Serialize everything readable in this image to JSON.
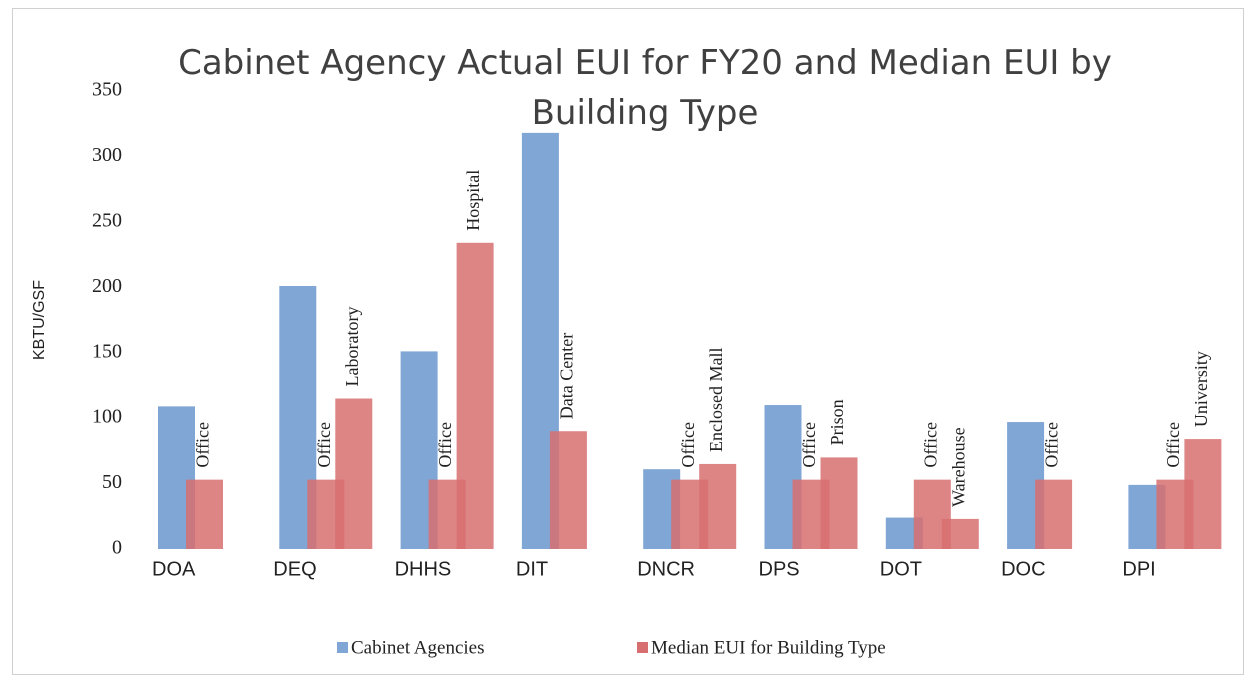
{
  "chart_data": {
    "type": "bar",
    "title": "Cabinet Agency Actual EUI for FY20 and Median EUI by Building Type",
    "y_label": "KBTU/GSF",
    "categories": [
      "DOA",
      "DEQ",
      "DHHS",
      "DIT",
      "DNCR",
      "DPS",
      "DOT",
      "DOC",
      "DPI"
    ],
    "series": [
      {
        "name": "Cabinet Agencies",
        "color": "#7fa6d4",
        "values": [
          109,
          201,
          151,
          318,
          61,
          110,
          24,
          97,
          49
        ]
      },
      {
        "name": "Median EUI for Building Type",
        "color": "#d76f70",
        "values": [
          53,
          53,
          53,
          null,
          53,
          53,
          53,
          53,
          53
        ],
        "bar_labels": [
          "Office",
          "Office",
          "Office",
          null,
          "Office",
          "Office",
          "Office",
          "Office",
          "Office"
        ]
      },
      {
        "color": "#d76f70",
        "values": [
          null,
          115,
          234,
          90,
          65,
          70,
          23,
          null,
          84
        ],
        "bar_labels": [
          null,
          "Laboratory",
          "Hospital",
          "Data Center",
          "Enclosed Mall",
          "Prison",
          "Warehouse",
          null,
          "University"
        ]
      }
    ],
    "ylim": [
      0,
      350
    ],
    "yticks": [
      0,
      50,
      100,
      150,
      200,
      250,
      300,
      350
    ],
    "grid": false,
    "legend": "bottom"
  }
}
